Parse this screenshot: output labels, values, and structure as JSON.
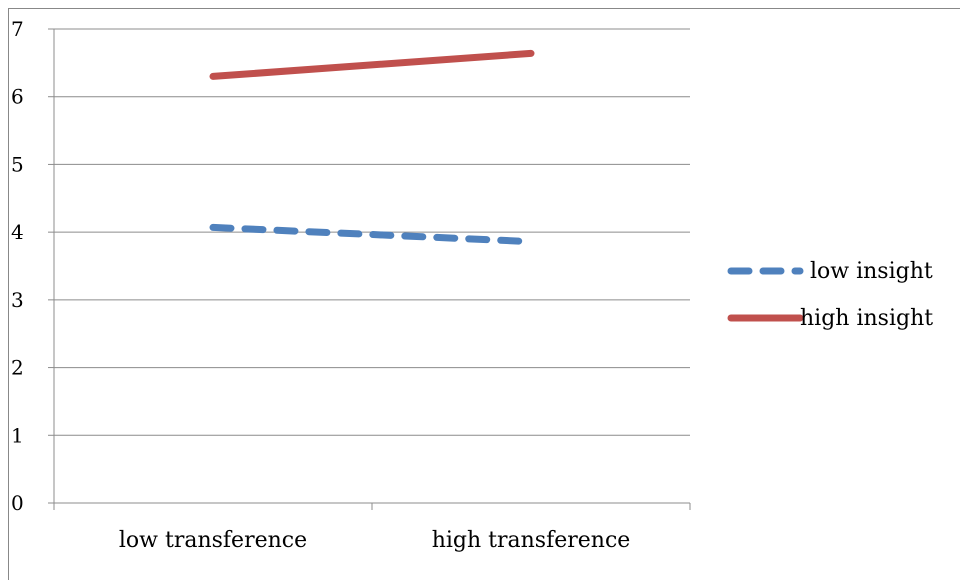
{
  "chart_data": {
    "type": "line",
    "categories": [
      "low transference",
      "high transference"
    ],
    "series": [
      {
        "name": "low insight",
        "values": [
          4.07,
          3.86
        ],
        "color": "#4F81BD",
        "style": "dashed"
      },
      {
        "name": "high insight",
        "values": [
          6.3,
          6.64
        ],
        "color": "#C0504D",
        "style": "solid"
      }
    ],
    "ylim": [
      0,
      7
    ],
    "yticks": [
      "0",
      "1",
      "2",
      "3",
      "4",
      "5",
      "6",
      "7"
    ],
    "grid": true,
    "legend": "right"
  }
}
